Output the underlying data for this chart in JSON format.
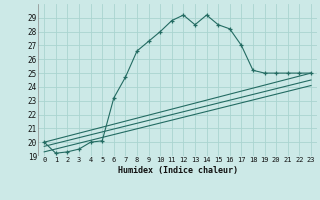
{
  "xlabel": "Humidex (Indice chaleur)",
  "background_color": "#cce9e7",
  "line_color": "#236b62",
  "grid_color": "#aad4d0",
  "xlim": [
    -0.5,
    23.5
  ],
  "ylim": [
    19,
    30
  ],
  "xticks": [
    0,
    1,
    2,
    3,
    4,
    5,
    6,
    7,
    8,
    9,
    10,
    11,
    12,
    13,
    14,
    15,
    16,
    17,
    18,
    19,
    20,
    21,
    22,
    23
  ],
  "yticks": [
    19,
    20,
    21,
    22,
    23,
    24,
    25,
    26,
    27,
    28,
    29
  ],
  "line1_x": [
    0,
    1,
    2,
    3,
    4,
    5,
    6,
    7,
    8,
    9,
    10,
    11,
    12,
    13,
    14,
    15,
    16,
    17,
    18,
    19,
    20,
    21,
    22,
    23
  ],
  "line1_y": [
    20.0,
    19.2,
    19.3,
    19.5,
    20.0,
    20.1,
    23.2,
    24.7,
    26.6,
    27.3,
    28.0,
    28.8,
    29.2,
    28.5,
    29.2,
    28.5,
    28.2,
    27.0,
    25.2,
    25.0,
    25.0,
    25.0,
    25.0,
    25.0
  ],
  "line2_x": [
    0,
    23
  ],
  "line2_y": [
    20.0,
    25.0
  ],
  "line3_x": [
    0,
    23
  ],
  "line3_y": [
    19.7,
    24.5
  ],
  "line4_x": [
    0,
    23
  ],
  "line4_y": [
    19.3,
    24.1
  ]
}
